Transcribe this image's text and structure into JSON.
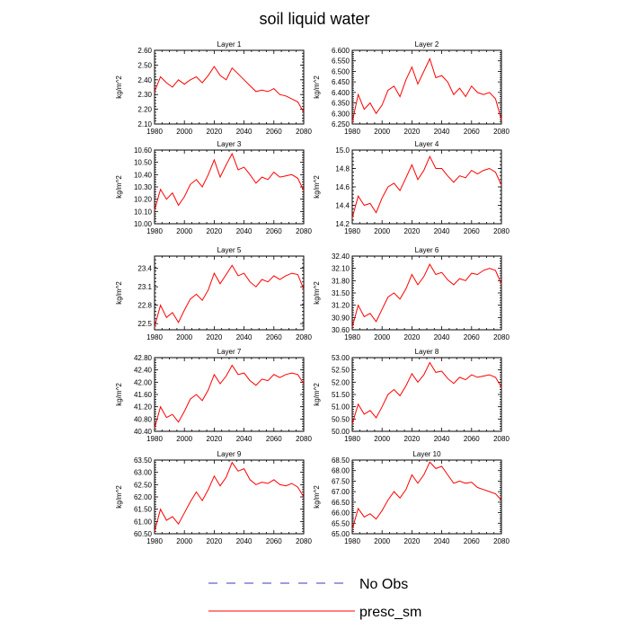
{
  "title": "soil liquid water",
  "legend": {
    "placement": "bottom-center",
    "entries": [
      {
        "label": "No Obs",
        "color": "#3b3bb8",
        "style": "dashed"
      },
      {
        "label": "presc_sm",
        "color": "#ff0000",
        "style": "solid"
      }
    ]
  },
  "chart_data": [
    {
      "type": "line",
      "title": "Layer 1",
      "xlabel": "",
      "ylabel": "kg/m^2",
      "xlim": [
        1980,
        2080
      ],
      "ylim": [
        2.1,
        2.6
      ],
      "xticks": [
        "1980",
        "2000",
        "2020",
        "2040",
        "2060",
        "2080"
      ],
      "yticks": [
        "2.10",
        "2.20",
        "2.30",
        "2.40",
        "2.50",
        "2.60"
      ],
      "series": [
        {
          "color": "#ff0000",
          "x": [
            1980,
            1984,
            1988,
            1992,
            1996,
            2000,
            2004,
            2008,
            2012,
            2016,
            2020,
            2024,
            2028,
            2032,
            2036,
            2040,
            2044,
            2048,
            2052,
            2056,
            2060,
            2064,
            2068,
            2072,
            2076,
            2080
          ],
          "values": [
            2.32,
            2.42,
            2.38,
            2.35,
            2.4,
            2.37,
            2.4,
            2.42,
            2.38,
            2.43,
            2.49,
            2.43,
            2.4,
            2.48,
            2.44,
            2.4,
            2.36,
            2.32,
            2.33,
            2.32,
            2.34,
            2.3,
            2.29,
            2.27,
            2.25,
            2.18
          ]
        }
      ]
    },
    {
      "type": "line",
      "title": "Layer 2",
      "xlabel": "",
      "ylabel": "kg/m^2",
      "xlim": [
        1980,
        2080
      ],
      "ylim": [
        6.25,
        6.6
      ],
      "xticks": [
        "1980",
        "2000",
        "2020",
        "2040",
        "2060",
        "2080"
      ],
      "yticks": [
        "6.250",
        "6.300",
        "6.350",
        "6.400",
        "6.450",
        "6.500",
        "6.550",
        "6.600"
      ],
      "series": [
        {
          "color": "#ff0000",
          "x": [
            1980,
            1984,
            1988,
            1992,
            1996,
            2000,
            2004,
            2008,
            2012,
            2016,
            2020,
            2024,
            2028,
            2032,
            2036,
            2040,
            2044,
            2048,
            2052,
            2056,
            2060,
            2064,
            2068,
            2072,
            2076,
            2080
          ],
          "values": [
            6.26,
            6.39,
            6.32,
            6.35,
            6.3,
            6.34,
            6.41,
            6.43,
            6.38,
            6.46,
            6.52,
            6.44,
            6.5,
            6.56,
            6.47,
            6.48,
            6.45,
            6.39,
            6.42,
            6.38,
            6.43,
            6.4,
            6.39,
            6.4,
            6.37,
            6.27
          ]
        }
      ]
    },
    {
      "type": "line",
      "title": "Layer 3",
      "xlabel": "",
      "ylabel": "kg/m^2",
      "xlim": [
        1980,
        2080
      ],
      "ylim": [
        10.0,
        10.6
      ],
      "xticks": [
        "1980",
        "2000",
        "2020",
        "2040",
        "2060",
        "2080"
      ],
      "yticks": [
        "10.00",
        "10.10",
        "10.20",
        "10.30",
        "10.40",
        "10.50",
        "10.60"
      ],
      "series": [
        {
          "color": "#ff0000",
          "x": [
            1980,
            1984,
            1988,
            1992,
            1996,
            2000,
            2004,
            2008,
            2012,
            2016,
            2020,
            2024,
            2028,
            2032,
            2036,
            2040,
            2044,
            2048,
            2052,
            2056,
            2060,
            2064,
            2068,
            2072,
            2076,
            2080
          ],
          "values": [
            10.11,
            10.28,
            10.2,
            10.25,
            10.15,
            10.22,
            10.32,
            10.36,
            10.3,
            10.4,
            10.52,
            10.38,
            10.48,
            10.57,
            10.44,
            10.46,
            10.4,
            10.33,
            10.38,
            10.36,
            10.42,
            10.38,
            10.39,
            10.4,
            10.37,
            10.27
          ]
        }
      ]
    },
    {
      "type": "line",
      "title": "Layer 4",
      "xlabel": "",
      "ylabel": "kg/m^2",
      "xlim": [
        1980,
        2080
      ],
      "ylim": [
        14.2,
        15.0
      ],
      "xticks": [
        "1980",
        "2000",
        "2020",
        "2040",
        "2060",
        "2080"
      ],
      "yticks": [
        "14.2",
        "14.4",
        "14.6",
        "14.8",
        "15.0"
      ],
      "series": [
        {
          "color": "#ff0000",
          "x": [
            1980,
            1984,
            1988,
            1992,
            1996,
            2000,
            2004,
            2008,
            2012,
            2016,
            2020,
            2024,
            2028,
            2032,
            2036,
            2040,
            2044,
            2048,
            2052,
            2056,
            2060,
            2064,
            2068,
            2072,
            2076,
            2080
          ],
          "values": [
            14.26,
            14.5,
            14.4,
            14.42,
            14.32,
            14.48,
            14.6,
            14.64,
            14.56,
            14.7,
            14.84,
            14.68,
            14.78,
            14.93,
            14.8,
            14.8,
            14.72,
            14.65,
            14.72,
            14.7,
            14.78,
            14.74,
            14.78,
            14.8,
            14.76,
            14.62
          ]
        }
      ]
    },
    {
      "type": "line",
      "title": "Layer 5",
      "xlabel": "",
      "ylabel": "kg/m^2",
      "xlim": [
        1980,
        2080
      ],
      "ylim": [
        22.4,
        23.6
      ],
      "xticks": [
        "1980",
        "2000",
        "2020",
        "2040",
        "2060",
        "2080"
      ],
      "yticks": [
        "22.5",
        "22.8",
        "23.1",
        "23.4"
      ],
      "series": [
        {
          "color": "#ff0000",
          "x": [
            1980,
            1984,
            1988,
            1992,
            1996,
            2000,
            2004,
            2008,
            2012,
            2016,
            2020,
            2024,
            2028,
            2032,
            2036,
            2040,
            2044,
            2048,
            2052,
            2056,
            2060,
            2064,
            2068,
            2072,
            2076,
            2080
          ],
          "values": [
            22.45,
            22.8,
            22.6,
            22.68,
            22.52,
            22.72,
            22.9,
            22.98,
            22.88,
            23.05,
            23.32,
            23.15,
            23.3,
            23.45,
            23.28,
            23.32,
            23.18,
            23.1,
            23.22,
            23.18,
            23.28,
            23.22,
            23.28,
            23.32,
            23.3,
            23.06
          ]
        }
      ]
    },
    {
      "type": "line",
      "title": "Layer 6",
      "xlabel": "",
      "ylabel": "kg/m^2",
      "xlim": [
        1980,
        2080
      ],
      "ylim": [
        30.6,
        32.4
      ],
      "xticks": [
        "1980",
        "2000",
        "2020",
        "2040",
        "2060",
        "2080"
      ],
      "yticks": [
        "30.60",
        "30.90",
        "31.20",
        "31.50",
        "31.80",
        "32.10",
        "32.40"
      ],
      "series": [
        {
          "color": "#ff0000",
          "x": [
            1980,
            1984,
            1988,
            1992,
            1996,
            2000,
            2004,
            2008,
            2012,
            2016,
            2020,
            2024,
            2028,
            2032,
            2036,
            2040,
            2044,
            2048,
            2052,
            2056,
            2060,
            2064,
            2068,
            2072,
            2076,
            2080
          ],
          "values": [
            30.66,
            31.2,
            30.92,
            31.0,
            30.8,
            31.1,
            31.4,
            31.5,
            31.35,
            31.6,
            31.95,
            31.7,
            31.9,
            32.2,
            31.95,
            32.0,
            31.82,
            31.7,
            31.85,
            31.8,
            31.98,
            31.95,
            32.05,
            32.1,
            32.05,
            31.72
          ]
        }
      ]
    },
    {
      "type": "line",
      "title": "Layer 7",
      "xlabel": "",
      "ylabel": "kg/m^2",
      "xlim": [
        1980,
        2080
      ],
      "ylim": [
        40.4,
        42.8
      ],
      "xticks": [
        "1980",
        "2000",
        "2020",
        "2040",
        "2060",
        "2080"
      ],
      "yticks": [
        "40.40",
        "40.80",
        "41.20",
        "41.60",
        "42.00",
        "42.40",
        "42.80"
      ],
      "series": [
        {
          "color": "#ff0000",
          "x": [
            1980,
            1984,
            1988,
            1992,
            1996,
            2000,
            2004,
            2008,
            2012,
            2016,
            2020,
            2024,
            2028,
            2032,
            2036,
            2040,
            2044,
            2048,
            2052,
            2056,
            2060,
            2064,
            2068,
            2072,
            2076,
            2080
          ],
          "values": [
            40.5,
            41.2,
            40.85,
            40.95,
            40.7,
            41.05,
            41.45,
            41.6,
            41.4,
            41.75,
            42.25,
            41.95,
            42.2,
            42.55,
            42.25,
            42.3,
            42.05,
            41.9,
            42.1,
            42.05,
            42.25,
            42.15,
            42.25,
            42.3,
            42.25,
            41.95
          ]
        }
      ]
    },
    {
      "type": "line",
      "title": "Layer 8",
      "xlabel": "",
      "ylabel": "kg/m^2",
      "xlim": [
        1980,
        2080
      ],
      "ylim": [
        50.0,
        53.0
      ],
      "xticks": [
        "1980",
        "2000",
        "2020",
        "2040",
        "2060",
        "2080"
      ],
      "yticks": [
        "50.00",
        "50.50",
        "51.00",
        "51.50",
        "52.00",
        "52.50",
        "53.00"
      ],
      "series": [
        {
          "color": "#ff0000",
          "x": [
            1980,
            1984,
            1988,
            1992,
            1996,
            2000,
            2004,
            2008,
            2012,
            2016,
            2020,
            2024,
            2028,
            2032,
            2036,
            2040,
            2044,
            2048,
            2052,
            2056,
            2060,
            2064,
            2068,
            2072,
            2076,
            2080
          ],
          "values": [
            50.3,
            51.1,
            50.7,
            50.85,
            50.55,
            51.0,
            51.5,
            51.7,
            51.45,
            51.85,
            52.35,
            52.0,
            52.3,
            52.8,
            52.4,
            52.45,
            52.15,
            51.95,
            52.2,
            52.1,
            52.3,
            52.2,
            52.25,
            52.3,
            52.2,
            51.8
          ]
        }
      ]
    },
    {
      "type": "line",
      "title": "Layer 9",
      "xlabel": "",
      "ylabel": "kg/m^2",
      "xlim": [
        1980,
        2080
      ],
      "ylim": [
        60.5,
        63.5
      ],
      "xticks": [
        "1980",
        "2000",
        "2020",
        "2040",
        "2060",
        "2080"
      ],
      "yticks": [
        "60.50",
        "61.00",
        "61.50",
        "62.00",
        "62.50",
        "63.00",
        "63.50"
      ],
      "series": [
        {
          "color": "#ff0000",
          "x": [
            1980,
            1984,
            1988,
            1992,
            1996,
            2000,
            2004,
            2008,
            2012,
            2016,
            2020,
            2024,
            2028,
            2032,
            2036,
            2040,
            2044,
            2048,
            2052,
            2056,
            2060,
            2064,
            2068,
            2072,
            2076,
            2080
          ],
          "values": [
            60.6,
            61.5,
            61.05,
            61.2,
            60.9,
            61.35,
            61.8,
            62.2,
            61.85,
            62.3,
            62.85,
            62.45,
            62.8,
            63.4,
            63.05,
            63.15,
            62.7,
            62.5,
            62.6,
            62.55,
            62.7,
            62.5,
            62.45,
            62.55,
            62.4,
            62.0
          ]
        }
      ]
    },
    {
      "type": "line",
      "title": "Layer 10",
      "xlabel": "",
      "ylabel": "kg/m^2",
      "xlim": [
        1980,
        2080
      ],
      "ylim": [
        65.0,
        68.5
      ],
      "xticks": [
        "1980",
        "2000",
        "2020",
        "2040",
        "2060",
        "2080"
      ],
      "yticks": [
        "65.00",
        "65.50",
        "66.00",
        "66.50",
        "67.00",
        "67.50",
        "68.00",
        "68.50"
      ],
      "series": [
        {
          "color": "#ff0000",
          "x": [
            1980,
            1984,
            1988,
            1992,
            1996,
            2000,
            2004,
            2008,
            2012,
            2016,
            2020,
            2024,
            2028,
            2032,
            2036,
            2040,
            2044,
            2048,
            2052,
            2056,
            2060,
            2064,
            2068,
            2072,
            2076,
            2080
          ],
          "values": [
            65.2,
            66.2,
            65.8,
            65.95,
            65.7,
            66.1,
            66.6,
            67.0,
            66.7,
            67.1,
            67.8,
            67.4,
            67.8,
            68.4,
            68.1,
            68.2,
            67.8,
            67.4,
            67.5,
            67.4,
            67.45,
            67.2,
            67.1,
            67.0,
            66.9,
            66.6
          ]
        }
      ]
    }
  ]
}
